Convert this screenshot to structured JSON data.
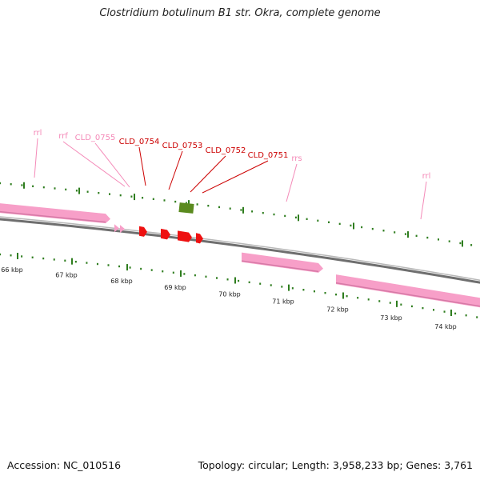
{
  "title": "Clostridium botulinum B1 str. Okra, complete genome",
  "footer": {
    "accession": "Accession: NC_010516",
    "summary": "Topology: circular; Length: 3,958,233 bp; Genes: 3,761"
  },
  "colors": {
    "rna": "#f79fc8",
    "rna_label": "#f48ab8",
    "cds": "#ee1111",
    "cds_label": "#cc0000",
    "tick": "#2e7d1e",
    "misc": "#5a8a1e",
    "backbone": "#8a8a8a"
  },
  "ticks": [
    {
      "label": "66 kbp"
    },
    {
      "label": "67 kbp"
    },
    {
      "label": "68 kbp"
    },
    {
      "label": "69 kbp"
    },
    {
      "label": "70 kbp"
    },
    {
      "label": "71 kbp"
    },
    {
      "label": "72 kbp"
    },
    {
      "label": "73 kbp"
    },
    {
      "label": "74 kbp"
    }
  ],
  "features": [
    {
      "name": "rrl",
      "type": "rRNA"
    },
    {
      "name": "rrf",
      "type": "rRNA"
    },
    {
      "name": "CLD_0755",
      "type": "tRNA"
    },
    {
      "name": "CLD_0754",
      "type": "CDS"
    },
    {
      "name": "CLD_0753",
      "type": "CDS"
    },
    {
      "name": "CLD_0752",
      "type": "CDS"
    },
    {
      "name": "CLD_0751",
      "type": "CDS"
    },
    {
      "name": "rrs",
      "type": "rRNA"
    },
    {
      "name": "rrl",
      "type": "rRNA"
    }
  ]
}
